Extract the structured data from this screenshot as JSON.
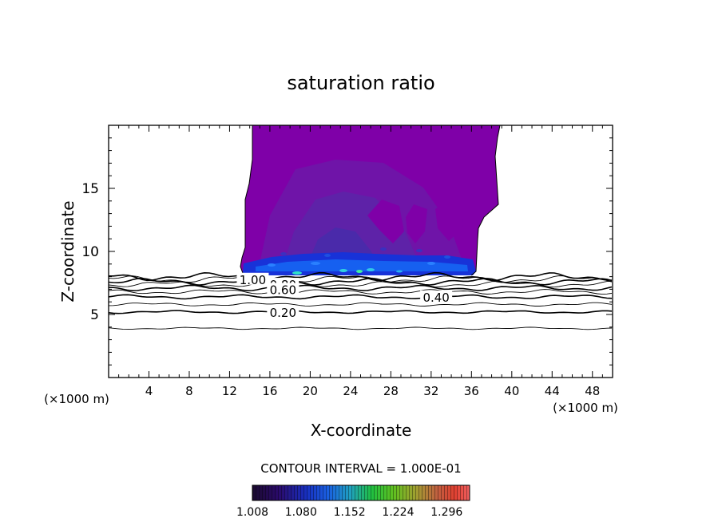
{
  "chart_data": {
    "type": "contour",
    "title": "saturation ratio",
    "xlabel": "X-coordinate",
    "ylabel": "Z-coordinate",
    "x_unit_label": "(×1000 m)",
    "y_unit_label": "(×1000 m)",
    "xlim": [
      0,
      50
    ],
    "ylim": [
      0,
      20
    ],
    "x_ticks": [
      4,
      8,
      12,
      16,
      20,
      24,
      28,
      32,
      36,
      40,
      44,
      48
    ],
    "y_ticks": [
      5,
      10,
      15
    ],
    "x_tick_labels": [
      "4",
      "8",
      "12",
      "16",
      "20",
      "24",
      "28",
      "32",
      "36",
      "40",
      "44",
      "48"
    ],
    "y_tick_labels": [
      "5",
      "10",
      "15"
    ],
    "contour_interval_text": "CONTOUR INTERVAL = 1.000E-01",
    "contour_levels": [
      {
        "level": 0.1,
        "z": 3.9
      },
      {
        "level": 0.2,
        "z": 5.2
      },
      {
        "level": 0.3,
        "z": 5.8
      },
      {
        "level": 0.4,
        "z": 6.4
      },
      {
        "level": 0.5,
        "z": 6.8
      },
      {
        "level": 0.6,
        "z": 7.1
      },
      {
        "level": 0.7,
        "z": 7.4
      },
      {
        "level": 0.8,
        "z": 7.6
      },
      {
        "level": 0.9,
        "z": 7.8
      },
      {
        "level": 1.0,
        "z": 8.0
      }
    ],
    "contour_labels": [
      {
        "text": "1.00",
        "x": 14.3,
        "z": 7.8
      },
      {
        "text": "0.80",
        "x": 17.3,
        "z": 7.4
      },
      {
        "text": "0.60",
        "x": 17.3,
        "z": 7.0
      },
      {
        "text": "0.40",
        "x": 32.5,
        "z": 6.4
      },
      {
        "text": "0.20",
        "x": 17.3,
        "z": 5.2
      }
    ],
    "shaded_region": {
      "x_range": [
        12.9,
        38.9
      ],
      "z_range": [
        8.0,
        20.0
      ],
      "outer_value": 1.03,
      "core_value": 1.02,
      "base_layer_value": 1.08,
      "peak_value": 1.16
    },
    "colorbar": {
      "min": 1.008,
      "max": 1.33,
      "tick_labels": [
        "1.008",
        "1.080",
        "1.152",
        "1.224",
        "1.296"
      ],
      "colors": [
        "#1a0a2e",
        "#2a0a6a",
        "#1830c0",
        "#1a60e0",
        "#20a0c0",
        "#20c040",
        "#60c020",
        "#a0a030",
        "#c06040",
        "#e04030",
        "#f06060"
      ]
    }
  }
}
